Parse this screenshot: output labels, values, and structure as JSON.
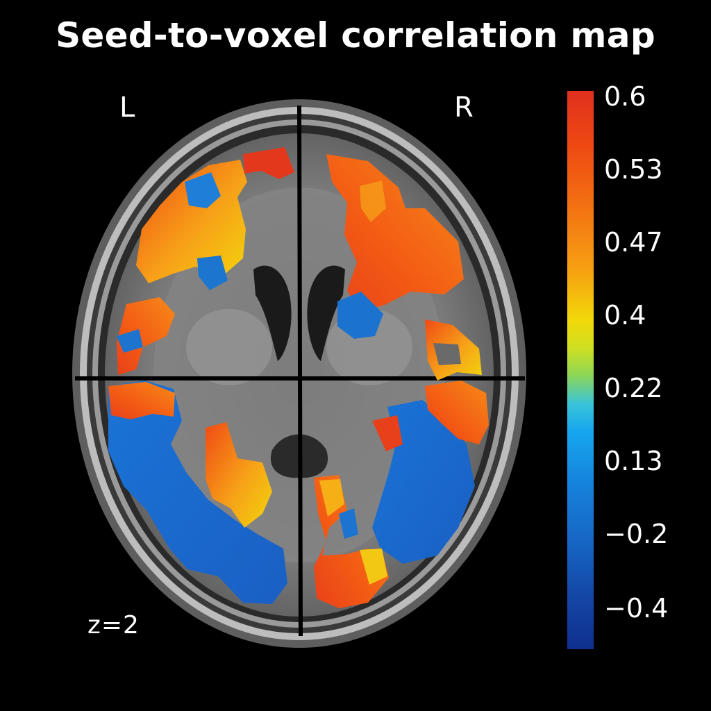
{
  "title": "Seed-to-voxel correlation map",
  "hemisphere_labels": {
    "left": "L",
    "right": "R"
  },
  "slice_label": "z=2",
  "colorbar": {
    "ticks": [
      "0.6",
      "0.53",
      "0.47",
      "0.4",
      "0.22",
      "0.13",
      "−0.2",
      "−0.4"
    ],
    "colors": {
      "high": "#e0301e",
      "mid": "#f2d80a",
      "low": "#0f2f8e"
    }
  }
}
